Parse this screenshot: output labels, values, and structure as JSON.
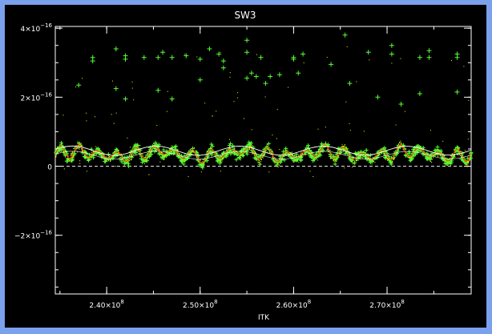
{
  "chart_data": {
    "type": "scatter",
    "title": "SW3",
    "xlabel": "ITK",
    "ylabel": "",
    "xlim": [
      234500000.0,
      279000000.0
    ],
    "ylim": [
      -3.7e-16,
      4.05e-16
    ],
    "x_ticks": [
      {
        "value": 240000000.0,
        "mant": "2.40×10",
        "exp": "8"
      },
      {
        "value": 250000000.0,
        "mant": "2.50×10",
        "exp": "8"
      },
      {
        "value": 260000000.0,
        "mant": "2.60×10",
        "exp": "8"
      },
      {
        "value": 270000000.0,
        "mant": "2.70×10",
        "exp": "8"
      }
    ],
    "y_ticks": [
      {
        "value": 4e-16,
        "mant": "4×10",
        "exp": "−16"
      },
      {
        "value": 2e-16,
        "mant": "2×10",
        "exp": "−16"
      },
      {
        "value": 0,
        "mant": "0",
        "exp": ""
      },
      {
        "value": -2e-16,
        "mant": "−2×10",
        "exp": "−16"
      }
    ],
    "colors": {
      "points": "#ffff00",
      "plus": "#55ff33",
      "median": "#ff3300",
      "smooth": "#ffffff",
      "zero_line": "#ffffff"
    },
    "series": [
      {
        "marker": "plus",
        "color": "#55ff33",
        "outliers": [
          [
            237000000.0,
            2.35e-16
          ],
          [
            238500000.0,
            3.15e-16
          ],
          [
            238500000.0,
            3.05e-16
          ],
          [
            241000000.0,
            3.4e-16
          ],
          [
            241000000.0,
            2.25e-16
          ],
          [
            242000000.0,
            3.2e-16
          ],
          [
            242000000.0,
            3.1e-16
          ],
          [
            242000000.0,
            1.95e-16
          ],
          [
            244000000.0,
            3.15e-16
          ],
          [
            245500000.0,
            3.15e-16
          ],
          [
            245500000.0,
            2.2e-16
          ],
          [
            246000000.0,
            3.3e-16
          ],
          [
            247000000.0,
            3.15e-16
          ],
          [
            247000000.0,
            1.95e-16
          ],
          [
            248500000.0,
            3.2e-16
          ],
          [
            250000000.0,
            3.1e-16
          ],
          [
            250000000.0,
            2.5e-16
          ],
          [
            251000000.0,
            3.4e-16
          ],
          [
            252000000.0,
            3.25e-16
          ],
          [
            252500000.0,
            2.85e-16
          ],
          [
            252500000.0,
            3.05e-16
          ],
          [
            255000000.0,
            3.65e-16
          ],
          [
            255000000.0,
            3.3e-16
          ],
          [
            255000000.0,
            2.55e-16
          ],
          [
            255500000.0,
            2.7e-16
          ],
          [
            256000000.0,
            2.6e-16
          ],
          [
            256500000.0,
            3.15e-16
          ],
          [
            257000000.0,
            2.4e-16
          ],
          [
            257500000.0,
            2.6e-16
          ],
          [
            258500000.0,
            2.65e-16
          ],
          [
            260000000.0,
            3.15e-16
          ],
          [
            260000000.0,
            3.1e-16
          ],
          [
            260500000.0,
            2.7e-16
          ],
          [
            261000000.0,
            3.25e-16
          ],
          [
            264000000.0,
            2.95e-16
          ],
          [
            265500000.0,
            3.8e-16
          ],
          [
            266000000.0,
            2.4e-16
          ],
          [
            268000000.0,
            3.3e-16
          ],
          [
            269000000.0,
            2e-16
          ],
          [
            270500000.0,
            3.5e-16
          ],
          [
            270500000.0,
            3.25e-16
          ],
          [
            271500000.0,
            1.8e-16
          ],
          [
            273500000.0,
            3.15e-16
          ],
          [
            273500000.0,
            2.1e-16
          ],
          [
            274500000.0,
            3.35e-16
          ],
          [
            274500000.0,
            3.15e-16
          ],
          [
            277500000.0,
            3.25e-16
          ],
          [
            277500000.0,
            3.15e-16
          ],
          [
            277500000.0,
            2.15e-16
          ]
        ]
      },
      {
        "marker": "dot",
        "color": "#ffff00"
      },
      {
        "marker": "line",
        "color": "#ff3300"
      },
      {
        "marker": "line",
        "color": "#ffffff"
      }
    ]
  }
}
